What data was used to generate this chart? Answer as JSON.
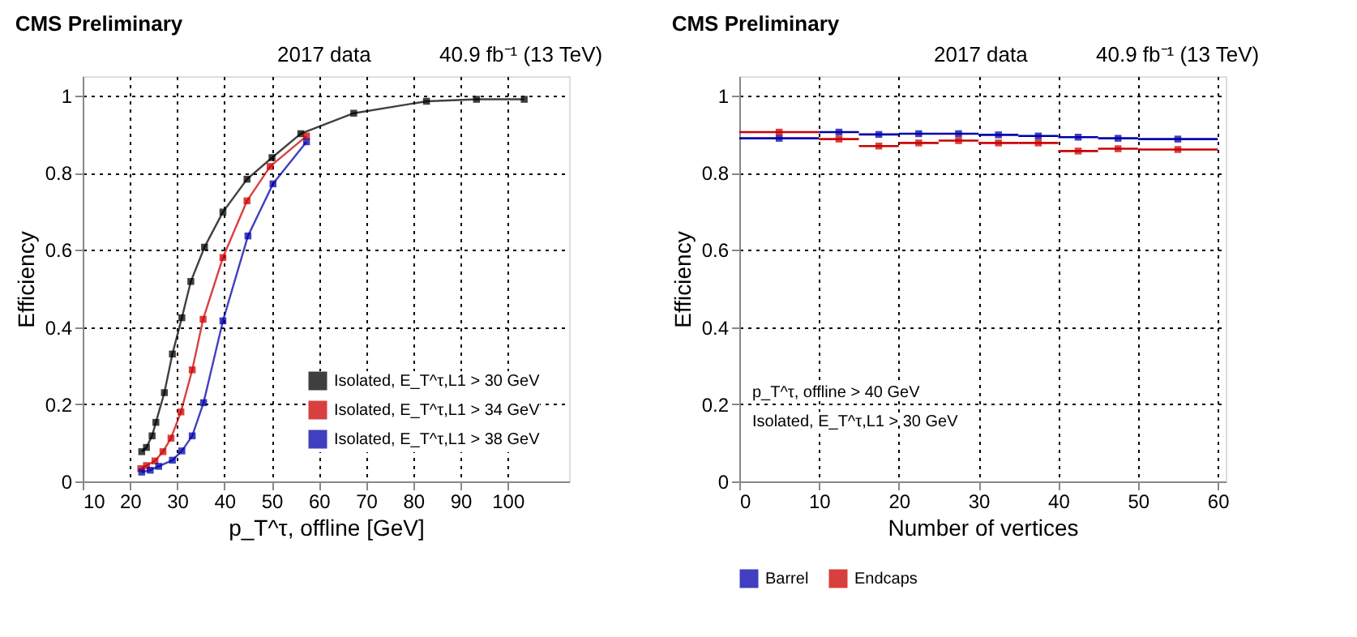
{
  "chart_data": [
    {
      "type": "line",
      "title": "CMS Preliminary",
      "annotations": [
        "2017 data",
        "40.9 fb⁻¹ (13 TeV)"
      ],
      "xlabel": "p_T^τ, offline [GeV]",
      "ylabel": "Efficiency",
      "xlim": [
        10,
        113
      ],
      "xticks": [
        10,
        20,
        30,
        40,
        50,
        60,
        70,
        80,
        90,
        100
      ],
      "ylim": [
        0,
        1.05
      ],
      "yticks": [
        0,
        0.2,
        0.4,
        0.6,
        0.8,
        1
      ],
      "grid": true,
      "line_style": "solid",
      "marker": "square",
      "legend": "bottom right",
      "series": [
        {
          "name": "Isolated, E_T^τ,L1 > 30 GeV",
          "color": "#000000",
          "x": [
            22.5,
            23.5,
            24.7,
            25.5,
            27.3,
            29,
            31,
            32.9,
            35.8,
            39.7,
            44.8,
            50.1,
            56.2,
            67.4,
            82.8,
            93.4,
            103.5
          ],
          "values": [
            0.077,
            0.088,
            0.118,
            0.153,
            0.23,
            0.33,
            0.424,
            0.518,
            0.607,
            0.698,
            0.783,
            0.839,
            0.901,
            0.954,
            0.985,
            0.99,
            0.99
          ]
        },
        {
          "name": "Isolated, E_T^τ,L1 > 34 GeV",
          "color": "#cc0000",
          "x": [
            22.3,
            23.5,
            25.3,
            27,
            28.7,
            30.8,
            33.2,
            35.5,
            39.7,
            44.8,
            49.7,
            57.4
          ],
          "values": [
            0.033,
            0.041,
            0.053,
            0.077,
            0.112,
            0.18,
            0.289,
            0.42,
            0.58,
            0.727,
            0.816,
            0.895
          ]
        },
        {
          "name": "Isolated, E_T^τ,L1 > 38 GeV",
          "color": "#0000aa",
          "x": [
            22.5,
            24.3,
            26.1,
            29,
            31,
            33.2,
            35.6,
            39.7,
            45,
            50.3,
            57.4
          ],
          "values": [
            0.024,
            0.029,
            0.039,
            0.055,
            0.079,
            0.118,
            0.204,
            0.416,
            0.636,
            0.771,
            0.88
          ]
        }
      ]
    },
    {
      "type": "scatter",
      "title": "CMS Preliminary",
      "annotations": [
        "2017 data",
        "40.9 fb⁻¹ (13 TeV)",
        "p_T^τ, offline > 40 GeV",
        "Isolated, E_T^τ,L1 > 30 GeV"
      ],
      "xlabel": "Number of vertices",
      "ylabel": "Efficiency",
      "xlim": [
        0,
        61
      ],
      "xticks": [
        0,
        10,
        20,
        30,
        40,
        50,
        60
      ],
      "ylim": [
        0,
        1.05
      ],
      "yticks": [
        0,
        0.2,
        0.4,
        0.6,
        0.8,
        1
      ],
      "grid": true,
      "marker": "square",
      "legend": "bottom",
      "series": [
        {
          "name": "Barrel",
          "color": "#0000aa",
          "x": [
            5,
            12.5,
            17.5,
            22.5,
            27.5,
            32.5,
            37.5,
            42.5,
            47.5,
            55
          ],
          "xerrors": [
            5,
            2.5,
            2.5,
            2.5,
            2.5,
            2.5,
            2.5,
            2.5,
            2.5,
            5
          ],
          "values": [
            0.889,
            0.905,
            0.899,
            0.901,
            0.901,
            0.898,
            0.895,
            0.892,
            0.889,
            0.887
          ]
        },
        {
          "name": "Endcaps",
          "color": "#cc0000",
          "x": [
            5,
            12.5,
            17.5,
            22.5,
            27.5,
            32.5,
            37.5,
            42.5,
            47.5,
            55
          ],
          "xerrors": [
            5,
            2.5,
            2.5,
            2.5,
            2.5,
            2.5,
            2.5,
            2.5,
            2.5,
            5
          ],
          "values": [
            0.905,
            0.887,
            0.869,
            0.877,
            0.883,
            0.877,
            0.877,
            0.856,
            0.862,
            0.86
          ]
        }
      ]
    }
  ]
}
